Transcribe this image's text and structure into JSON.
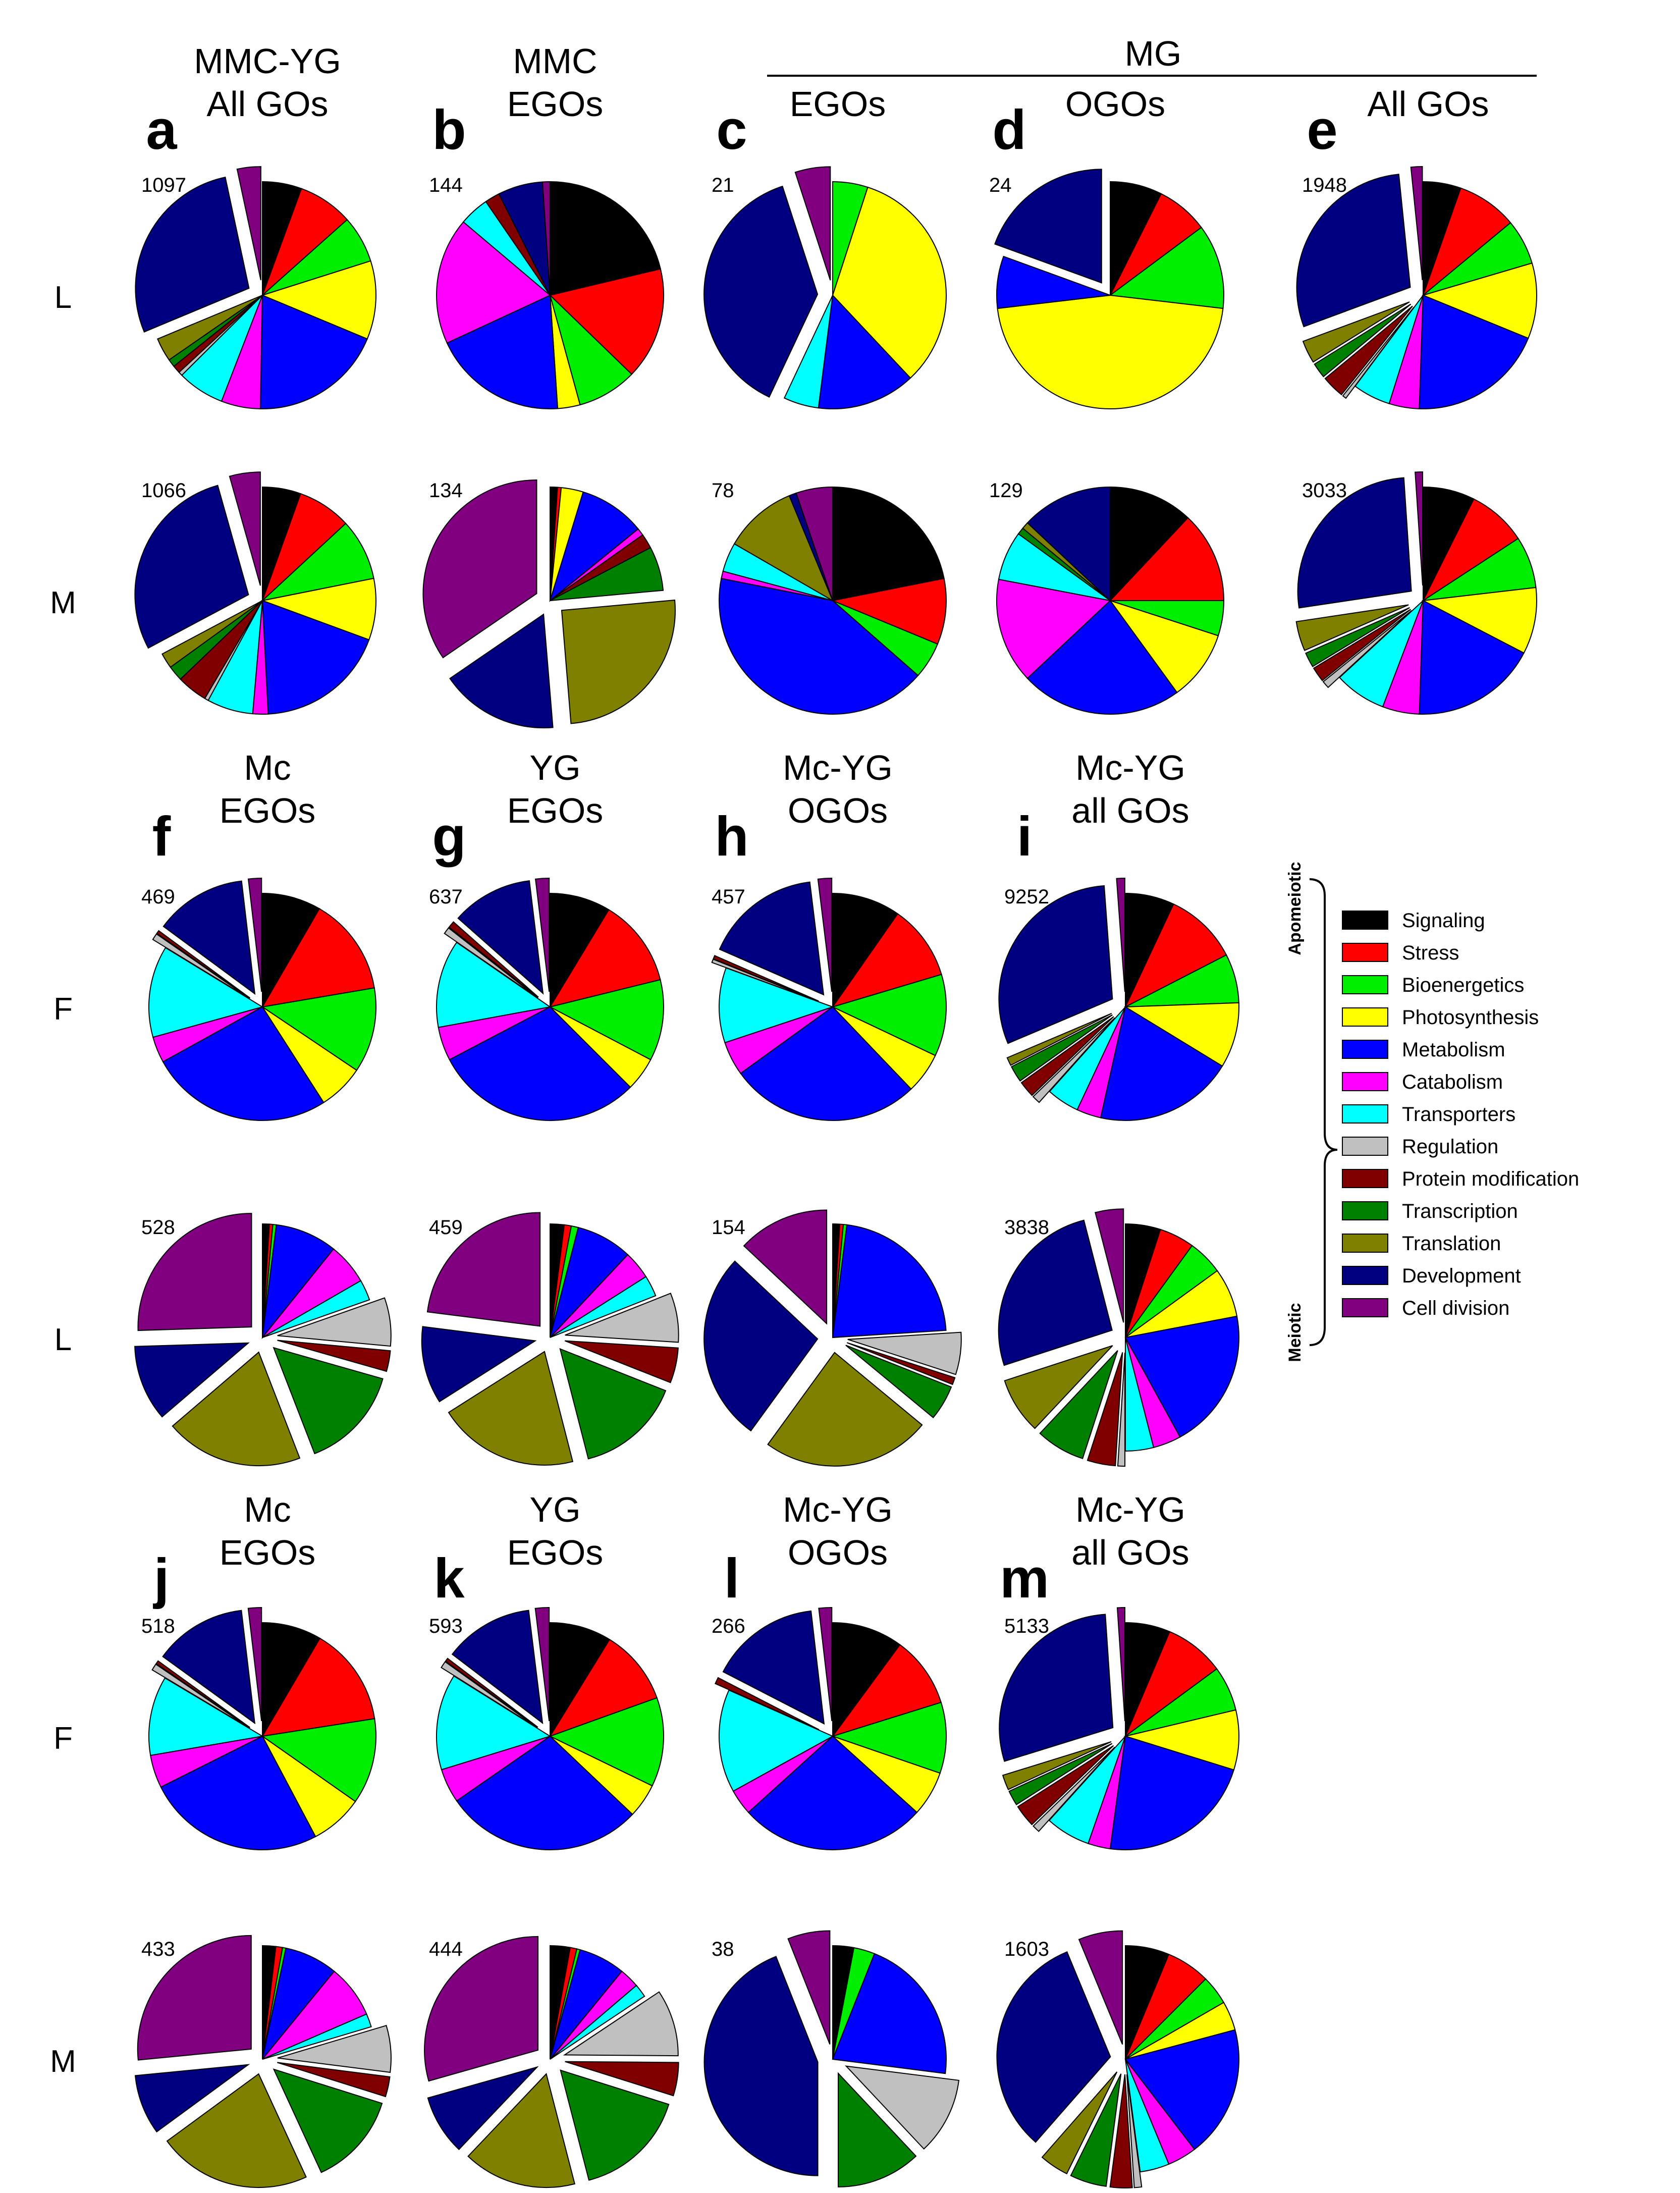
{
  "figure": {
    "mg_label": "MG",
    "legend_group_top": "Apomeiotic",
    "legend_group_bottom": "Meiotic"
  },
  "categories": [
    {
      "name": "Signaling",
      "color": "#000000"
    },
    {
      "name": "Stress",
      "color": "#ff0000"
    },
    {
      "name": "Bioenergetics",
      "color": "#00ee00"
    },
    {
      "name": "Photosynthesis",
      "color": "#ffff00"
    },
    {
      "name": "Metabolism",
      "color": "#0000ff"
    },
    {
      "name": "Catabolism",
      "color": "#ff00ff"
    },
    {
      "name": "Transporters",
      "color": "#00ffff"
    },
    {
      "name": "Regulation",
      "color": "#c0c0c0"
    },
    {
      "name": "Protein modification",
      "color": "#800000"
    },
    {
      "name": "Transcription",
      "color": "#008000"
    },
    {
      "name": "Translation",
      "color": "#808000"
    },
    {
      "name": "Development",
      "color": "#000080"
    },
    {
      "name": "Cell division",
      "color": "#800080"
    }
  ],
  "column_headers": [
    {
      "letter": "a",
      "line1": "MMC-YG",
      "line2": "All GOs"
    },
    {
      "letter": "b",
      "line1": "MMC",
      "line2": "EGOs"
    },
    {
      "letter": "c",
      "line1": "",
      "line2": "EGOs"
    },
    {
      "letter": "d",
      "line1": "",
      "line2": "OGOs"
    },
    {
      "letter": "e",
      "line1": "",
      "line2": "All GOs"
    },
    {
      "letter": "f",
      "line1": "Mc",
      "line2": "EGOs"
    },
    {
      "letter": "g",
      "line1": "YG",
      "line2": "EGOs"
    },
    {
      "letter": "h",
      "line1": "Mc-YG",
      "line2": "OGOs"
    },
    {
      "letter": "i",
      "line1": "Mc-YG",
      "line2": "all GOs"
    },
    {
      "letter": "j",
      "line1": "Mc",
      "line2": "EGOs"
    },
    {
      "letter": "k",
      "line1": "YG",
      "line2": "EGOs"
    },
    {
      "letter": "l",
      "line1": "Mc-YG",
      "line2": "OGOs"
    },
    {
      "letter": "m",
      "line1": "Mc-YG",
      "line2": "all GOs"
    }
  ],
  "row_labels": [
    "L",
    "M",
    "F",
    "L",
    "F",
    "M"
  ],
  "chart_data": [
    {
      "type": "pie",
      "panel": "a",
      "row": "L",
      "count": "1097",
      "values": [
        5,
        7,
        6,
        10,
        17,
        5,
        6,
        0.5,
        1,
        1,
        3,
        25,
        3
      ],
      "explode": [
        11,
        12
      ]
    },
    {
      "type": "pie",
      "panel": "a",
      "row": "M",
      "count": "1066",
      "values": [
        5,
        7,
        8,
        8,
        17,
        2,
        6,
        0.5,
        4,
        2,
        2,
        26,
        4
      ],
      "explode": [
        11,
        12
      ]
    },
    {
      "type": "pie",
      "panel": "b",
      "row": "L",
      "count": "144",
      "values": [
        20,
        15,
        8,
        3,
        18,
        17,
        4,
        0,
        2,
        0,
        0,
        6,
        1
      ],
      "explode": []
    },
    {
      "type": "pie",
      "panel": "b",
      "row": "M",
      "count": "134",
      "values": [
        1,
        0.5,
        0,
        3,
        9,
        1,
        0,
        0,
        2,
        6,
        24,
        16,
        33
      ],
      "explode": [
        10,
        11,
        12
      ]
    },
    {
      "type": "pie",
      "panel": "c",
      "row": "L",
      "count": "21",
      "values": [
        0,
        0,
        5,
        33,
        14,
        0,
        5,
        0,
        0,
        0,
        0,
        38,
        5
      ],
      "explode": [
        11,
        12
      ]
    },
    {
      "type": "pie",
      "panel": "c",
      "row": "M",
      "count": "78",
      "values": [
        21,
        9,
        5,
        0,
        40,
        1,
        4,
        0,
        0,
        0,
        10,
        1,
        5
      ],
      "explode": []
    },
    {
      "type": "pie",
      "panel": "d",
      "row": "L",
      "count": "24",
      "values": [
        8,
        8,
        13,
        50,
        8,
        0,
        0,
        0,
        0,
        0,
        0,
        21,
        0
      ],
      "explode": [
        11
      ]
    },
    {
      "type": "pie",
      "panel": "d",
      "row": "M",
      "count": "129",
      "values": [
        12,
        13,
        5,
        10,
        23,
        15,
        7,
        0,
        0,
        1,
        1,
        13,
        0
      ],
      "explode": []
    },
    {
      "type": "pie",
      "panel": "e",
      "row": "L",
      "count": "1948",
      "values": [
        5,
        8,
        6,
        10,
        18,
        4,
        5,
        0.5,
        3,
        2,
        3,
        27,
        1.5
      ],
      "explode": [
        7,
        8,
        9,
        10,
        11,
        12
      ]
    },
    {
      "type": "pie",
      "panel": "e",
      "row": "M",
      "count": "3033",
      "values": [
        7,
        8,
        7,
        9,
        17,
        5,
        7,
        1,
        2,
        2,
        4,
        25,
        1
      ],
      "explode": [
        7,
        8,
        9,
        10,
        11,
        12
      ]
    },
    {
      "type": "pie",
      "panel": "f",
      "row": "F",
      "count": "469",
      "values": [
        9,
        15,
        13,
        7,
        28,
        4,
        14,
        1,
        0.5,
        0,
        0,
        14,
        2
      ],
      "explode": [
        7,
        8,
        11,
        12
      ]
    },
    {
      "type": "pie",
      "panel": "f",
      "row": "L",
      "count": "528",
      "values": [
        1,
        0.5,
        0.5,
        0,
        9,
        6,
        3,
        7,
        3,
        15,
        20,
        11,
        26
      ],
      "explode": [
        7,
        8,
        9,
        10,
        11,
        12
      ]
    },
    {
      "type": "pie",
      "panel": "g",
      "row": "F",
      "count": "637",
      "values": [
        9,
        13,
        12,
        5,
        31,
        5,
        13,
        1,
        1,
        0,
        0,
        12,
        2
      ],
      "explode": [
        7,
        8,
        11,
        12
      ]
    },
    {
      "type": "pie",
      "panel": "g",
      "row": "L",
      "count": "459",
      "values": [
        2,
        1,
        1,
        0,
        8,
        4,
        3,
        7,
        5,
        15,
        20,
        11,
        23
      ],
      "explode": [
        7,
        8,
        9,
        10,
        11,
        12
      ]
    },
    {
      "type": "pie",
      "panel": "h",
      "row": "F",
      "count": "457",
      "values": [
        10,
        11,
        12,
        6,
        28,
        5,
        11,
        0.5,
        0.5,
        0,
        0,
        17,
        2
      ],
      "explode": [
        7,
        8,
        11,
        12
      ]
    },
    {
      "type": "pie",
      "panel": "h",
      "row": "L",
      "count": "154",
      "values": [
        1,
        0.5,
        0.5,
        0,
        22,
        0,
        0,
        6,
        1,
        5,
        24,
        27,
        13
      ],
      "explode": [
        7,
        8,
        9,
        10,
        11,
        12
      ]
    },
    {
      "type": "pie",
      "panel": "i",
      "row": "F",
      "count": "9252",
      "values": [
        6,
        9,
        6,
        8,
        17,
        3,
        4,
        1,
        2,
        2,
        1,
        26,
        1
      ],
      "explode": [
        7,
        8,
        9,
        10,
        11,
        12
      ]
    },
    {
      "type": "pie",
      "panel": "i",
      "row": "L",
      "count": "3838",
      "values": [
        5,
        5,
        5,
        7,
        20,
        4,
        4,
        1,
        4,
        7,
        8,
        26,
        4
      ],
      "explode": [
        7,
        8,
        9,
        10,
        11,
        12
      ]
    },
    {
      "type": "pie",
      "panel": "j",
      "row": "F",
      "count": "518",
      "values": [
        9,
        15,
        13,
        8,
        27,
        5,
        12,
        1,
        0.5,
        0,
        0,
        14,
        2
      ],
      "explode": [
        7,
        8,
        11,
        12
      ]
    },
    {
      "type": "pie",
      "panel": "j",
      "row": "M",
      "count": "433",
      "values": [
        2,
        1,
        0.5,
        0,
        8,
        8,
        2,
        7,
        3,
        14,
        23,
        9,
        28
      ],
      "explode": [
        7,
        8,
        9,
        10,
        11,
        12
      ]
    },
    {
      "type": "pie",
      "panel": "k",
      "row": "F",
      "count": "593",
      "values": [
        9,
        11,
        13,
        5,
        29,
        5,
        14,
        1,
        0.5,
        0,
        0,
        13,
        2
      ],
      "explode": [
        7,
        8,
        11,
        12
      ]
    },
    {
      "type": "pie",
      "panel": "k",
      "row": "M",
      "count": "444",
      "values": [
        3,
        1,
        0.5,
        0,
        7,
        3,
        2,
        10,
        5,
        17,
        17,
        9,
        31
      ],
      "explode": [
        7,
        8,
        9,
        10,
        11,
        12
      ]
    },
    {
      "type": "pie",
      "panel": "l",
      "row": "F",
      "count": "266",
      "values": [
        11,
        11,
        11,
        7,
        29,
        4,
        16,
        0,
        1,
        0,
        0,
        17,
        2
      ],
      "explode": [
        8,
        11,
        12
      ]
    },
    {
      "type": "pie",
      "panel": "l",
      "row": "M",
      "count": "38",
      "values": [
        3,
        0,
        3,
        0,
        21,
        0,
        0,
        11,
        0,
        12,
        0,
        44,
        6
      ],
      "explode": [
        7,
        8,
        9,
        10,
        11,
        12
      ]
    },
    {
      "type": "pie",
      "panel": "m",
      "row": "F",
      "count": "5133",
      "values": [
        6,
        8,
        6,
        8,
        21,
        3,
        6,
        1,
        3,
        2,
        2,
        27,
        1
      ],
      "explode": [
        7,
        8,
        9,
        10,
        11,
        12
      ]
    },
    {
      "type": "pie",
      "panel": "m",
      "row": "M",
      "count": "1603",
      "values": [
        6,
        6,
        4,
        4,
        18,
        4,
        4,
        1,
        3,
        5,
        4,
        31,
        6
      ],
      "explode": [
        7,
        8,
        9,
        10,
        11,
        12
      ]
    }
  ]
}
